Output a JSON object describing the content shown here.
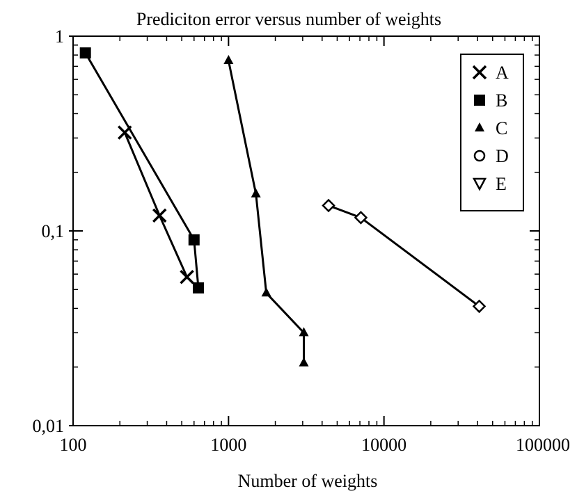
{
  "chart_data": {
    "type": "line",
    "title": "Prediciton error versus number of weights",
    "xlabel": "Number of weights",
    "ylabel": "",
    "x_scale": "log",
    "y_scale": "log",
    "xlim": [
      100,
      100000
    ],
    "ylim": [
      0.01,
      1
    ],
    "x_ticks": [
      {
        "value": 100,
        "label": "100"
      },
      {
        "value": 1000,
        "label": "1000"
      },
      {
        "value": 10000,
        "label": "10000"
      },
      {
        "value": 100000,
        "label": "100000"
      }
    ],
    "y_ticks": [
      {
        "value": 0.01,
        "label": "0,01"
      },
      {
        "value": 0.1,
        "label": "0,1"
      },
      {
        "value": 1,
        "label": "1"
      }
    ],
    "grid": false,
    "legend_position": "top-right",
    "series": [
      {
        "name": "A",
        "marker": "x",
        "color": "#000000",
        "points": [
          [
            215,
            0.32
          ],
          [
            360,
            0.12
          ],
          [
            540,
            0.058
          ]
        ]
      },
      {
        "name": "B",
        "marker": "square",
        "color": "#000000",
        "points": [
          [
            120,
            0.82
          ],
          [
            600,
            0.09
          ],
          [
            640,
            0.051
          ]
        ]
      },
      {
        "name": "C",
        "marker": "triangle-up",
        "color": "#000000",
        "points": [
          [
            1000,
            0.75
          ],
          [
            1500,
            0.155
          ],
          [
            1750,
            0.048
          ],
          [
            3050,
            0.03
          ],
          [
            3050,
            0.021
          ]
        ]
      },
      {
        "name": "D",
        "marker": "circle",
        "color": "#000000",
        "points": []
      },
      {
        "name": "E",
        "marker": "triangle-down",
        "color": "#000000",
        "points": []
      }
    ],
    "extra_lines": [
      {
        "marker": "diamond",
        "color": "#000000",
        "points": [
          [
            4400,
            0.135
          ],
          [
            7100,
            0.117
          ],
          [
            41000,
            0.041
          ]
        ]
      }
    ]
  }
}
